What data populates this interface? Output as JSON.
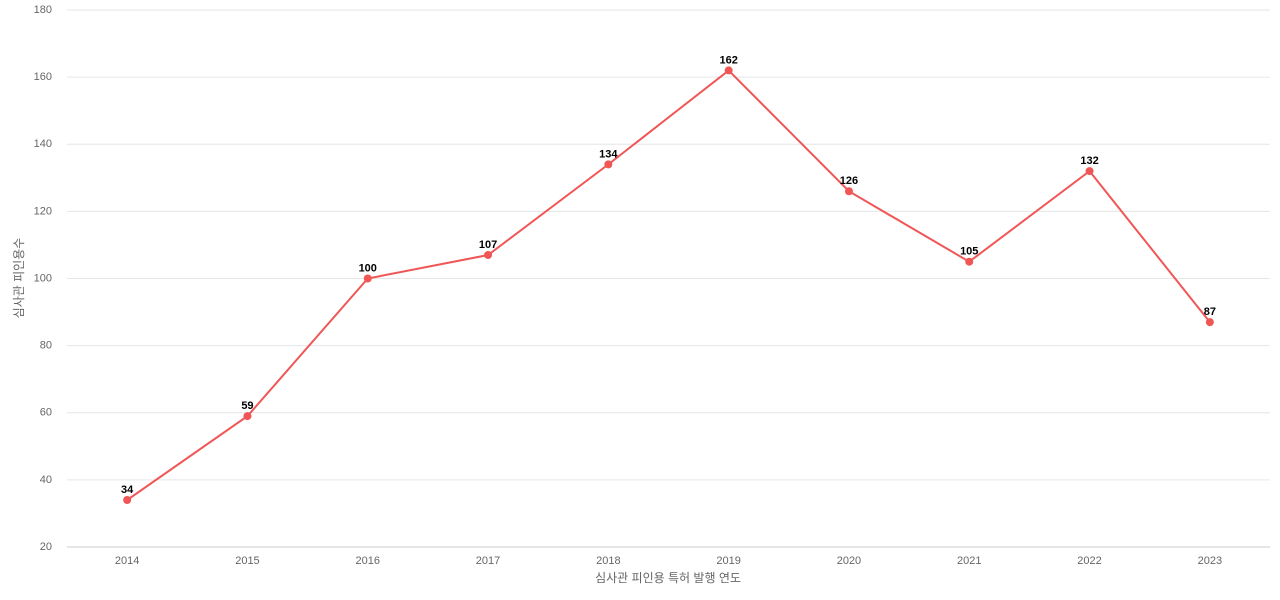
{
  "chart_data": {
    "type": "line",
    "x_label": "심사관 피인용 특허 발행 연도",
    "y_label": "심사관 피인용수",
    "categories": [
      "2014",
      "2015",
      "2016",
      "2017",
      "2018",
      "2019",
      "2020",
      "2021",
      "2022",
      "2023"
    ],
    "values": [
      34,
      59,
      100,
      107,
      134,
      162,
      126,
      105,
      132,
      87
    ],
    "color": "#f05656",
    "ylim": [
      20,
      180
    ],
    "yticks": [
      20,
      40,
      60,
      80,
      100,
      120,
      140,
      160,
      180
    ],
    "grid": true
  }
}
